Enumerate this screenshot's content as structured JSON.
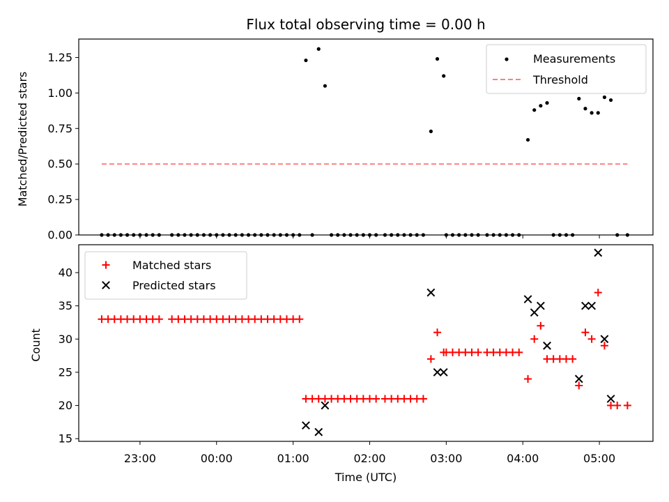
{
  "chart_data": [
    {
      "type": "scatter",
      "title": "Flux total observing time = 0.00 h",
      "ylabel": "Matched/Predicted stars",
      "xlabel": "",
      "ylim": [
        0,
        1.38
      ],
      "yticks": [
        "0.00",
        "0.25",
        "0.50",
        "0.75",
        "1.00",
        "1.25"
      ],
      "ytick_values": [
        0,
        0.25,
        0.5,
        0.75,
        1.0,
        1.25
      ],
      "legend_position": "top-right",
      "series": [
        {
          "name": "Measurements",
          "kind": "scatter",
          "marker": "dot",
          "color": "#000000",
          "points": [
            [
              "22:30",
              0
            ],
            [
              "22:35",
              0
            ],
            [
              "22:40",
              0
            ],
            [
              "22:45",
              0
            ],
            [
              "22:50",
              0
            ],
            [
              "22:55",
              0
            ],
            [
              "23:00",
              0
            ],
            [
              "23:05",
              0
            ],
            [
              "23:10",
              0
            ],
            [
              "23:15",
              0
            ],
            [
              "23:25",
              0
            ],
            [
              "23:30",
              0
            ],
            [
              "23:35",
              0
            ],
            [
              "23:40",
              0
            ],
            [
              "23:45",
              0
            ],
            [
              "23:50",
              0
            ],
            [
              "23:55",
              0
            ],
            [
              "00:00",
              0
            ],
            [
              "00:05",
              0
            ],
            [
              "00:10",
              0
            ],
            [
              "00:15",
              0
            ],
            [
              "00:20",
              0
            ],
            [
              "00:25",
              0
            ],
            [
              "00:30",
              0
            ],
            [
              "00:35",
              0
            ],
            [
              "00:40",
              0
            ],
            [
              "00:45",
              0
            ],
            [
              "00:50",
              0
            ],
            [
              "00:55",
              0
            ],
            [
              "01:00",
              0
            ],
            [
              "01:05",
              0
            ],
            [
              "01:10",
              1.23
            ],
            [
              "01:15",
              0
            ],
            [
              "01:20",
              1.31
            ],
            [
              "01:25",
              1.05
            ],
            [
              "01:30",
              0
            ],
            [
              "01:35",
              0
            ],
            [
              "01:40",
              0
            ],
            [
              "01:45",
              0
            ],
            [
              "01:50",
              0
            ],
            [
              "01:55",
              0
            ],
            [
              "02:00",
              0
            ],
            [
              "02:05",
              0
            ],
            [
              "02:12",
              0
            ],
            [
              "02:17",
              0
            ],
            [
              "02:22",
              0
            ],
            [
              "02:27",
              0
            ],
            [
              "02:32",
              0
            ],
            [
              "02:37",
              0
            ],
            [
              "02:42",
              0
            ],
            [
              "02:48",
              0.73
            ],
            [
              "02:53",
              1.24
            ],
            [
              "02:58",
              1.12
            ],
            [
              "03:00",
              0
            ],
            [
              "03:05",
              0
            ],
            [
              "03:10",
              0
            ],
            [
              "03:15",
              0
            ],
            [
              "03:20",
              0
            ],
            [
              "03:25",
              0
            ],
            [
              "03:32",
              0
            ],
            [
              "03:37",
              0
            ],
            [
              "03:42",
              0
            ],
            [
              "03:47",
              0
            ],
            [
              "03:52",
              0
            ],
            [
              "03:57",
              0
            ],
            [
              "04:04",
              0.67
            ],
            [
              "04:09",
              0.88
            ],
            [
              "04:14",
              0.91
            ],
            [
              "04:19",
              0.93
            ],
            [
              "04:24",
              0
            ],
            [
              "04:29",
              0
            ],
            [
              "04:34",
              0
            ],
            [
              "04:39",
              0
            ],
            [
              "04:44",
              0.96
            ],
            [
              "04:49",
              0.89
            ],
            [
              "04:54",
              0.86
            ],
            [
              "04:59",
              0.86
            ],
            [
              "05:04",
              0.97
            ],
            [
              "05:09",
              0.95
            ],
            [
              "05:14",
              0
            ],
            [
              "05:22",
              0
            ]
          ]
        },
        {
          "name": "Threshold",
          "kind": "line",
          "style": "dashed",
          "color": "#ff7f7f",
          "points": [
            [
              "22:30",
              0.5
            ],
            [
              "05:22",
              0.5
            ]
          ]
        }
      ]
    },
    {
      "type": "scatter",
      "title": "",
      "ylabel": "Count",
      "xlabel": "Time (UTC)",
      "ylim": [
        14.6,
        44.2
      ],
      "yticks": [
        "15",
        "20",
        "25",
        "30",
        "35",
        "40"
      ],
      "ytick_values": [
        15,
        20,
        25,
        30,
        35,
        40
      ],
      "xlim": [
        "22:12",
        "05:42"
      ],
      "xticks": [
        "23:00",
        "00:00",
        "01:00",
        "02:00",
        "03:00",
        "04:00",
        "05:00"
      ],
      "legend_position": "top-left",
      "series": [
        {
          "name": "Matched stars",
          "kind": "scatter",
          "marker": "plus",
          "color": "#ff0000",
          "points": [
            [
              "22:30",
              33
            ],
            [
              "22:35",
              33
            ],
            [
              "22:40",
              33
            ],
            [
              "22:45",
              33
            ],
            [
              "22:50",
              33
            ],
            [
              "22:55",
              33
            ],
            [
              "23:00",
              33
            ],
            [
              "23:05",
              33
            ],
            [
              "23:10",
              33
            ],
            [
              "23:15",
              33
            ],
            [
              "23:25",
              33
            ],
            [
              "23:30",
              33
            ],
            [
              "23:35",
              33
            ],
            [
              "23:40",
              33
            ],
            [
              "23:45",
              33
            ],
            [
              "23:50",
              33
            ],
            [
              "23:55",
              33
            ],
            [
              "00:00",
              33
            ],
            [
              "00:05",
              33
            ],
            [
              "00:10",
              33
            ],
            [
              "00:15",
              33
            ],
            [
              "00:20",
              33
            ],
            [
              "00:25",
              33
            ],
            [
              "00:30",
              33
            ],
            [
              "00:35",
              33
            ],
            [
              "00:40",
              33
            ],
            [
              "00:45",
              33
            ],
            [
              "00:50",
              33
            ],
            [
              "00:55",
              33
            ],
            [
              "01:00",
              33
            ],
            [
              "01:05",
              33
            ],
            [
              "01:10",
              21
            ],
            [
              "01:15",
              21
            ],
            [
              "01:20",
              21
            ],
            [
              "01:25",
              21
            ],
            [
              "01:30",
              21
            ],
            [
              "01:35",
              21
            ],
            [
              "01:40",
              21
            ],
            [
              "01:45",
              21
            ],
            [
              "01:50",
              21
            ],
            [
              "01:55",
              21
            ],
            [
              "02:00",
              21
            ],
            [
              "02:05",
              21
            ],
            [
              "02:12",
              21
            ],
            [
              "02:17",
              21
            ],
            [
              "02:22",
              21
            ],
            [
              "02:27",
              21
            ],
            [
              "02:32",
              21
            ],
            [
              "02:37",
              21
            ],
            [
              "02:42",
              21
            ],
            [
              "02:48",
              27
            ],
            [
              "02:53",
              31
            ],
            [
              "02:58",
              28
            ],
            [
              "03:00",
              28
            ],
            [
              "03:05",
              28
            ],
            [
              "03:10",
              28
            ],
            [
              "03:15",
              28
            ],
            [
              "03:20",
              28
            ],
            [
              "03:25",
              28
            ],
            [
              "03:32",
              28
            ],
            [
              "03:37",
              28
            ],
            [
              "03:42",
              28
            ],
            [
              "03:47",
              28
            ],
            [
              "03:52",
              28
            ],
            [
              "03:57",
              28
            ],
            [
              "04:04",
              24
            ],
            [
              "04:09",
              30
            ],
            [
              "04:14",
              32
            ],
            [
              "04:19",
              27
            ],
            [
              "04:24",
              27
            ],
            [
              "04:29",
              27
            ],
            [
              "04:34",
              27
            ],
            [
              "04:39",
              27
            ],
            [
              "04:44",
              23
            ],
            [
              "04:49",
              31
            ],
            [
              "04:54",
              30
            ],
            [
              "04:59",
              37
            ],
            [
              "05:04",
              29
            ],
            [
              "05:09",
              20
            ],
            [
              "05:14",
              20
            ],
            [
              "05:22",
              20
            ]
          ]
        },
        {
          "name": "Predicted stars",
          "kind": "scatter",
          "marker": "x",
          "color": "#000000",
          "points": [
            [
              "01:10",
              17
            ],
            [
              "01:20",
              16
            ],
            [
              "01:25",
              20
            ],
            [
              "02:48",
              37
            ],
            [
              "02:53",
              25
            ],
            [
              "02:58",
              25
            ],
            [
              "04:04",
              36
            ],
            [
              "04:09",
              34
            ],
            [
              "04:14",
              35
            ],
            [
              "04:19",
              29
            ],
            [
              "04:44",
              24
            ],
            [
              "04:49",
              35
            ],
            [
              "04:54",
              35
            ],
            [
              "04:59",
              43
            ],
            [
              "05:04",
              30
            ],
            [
              "05:09",
              21
            ]
          ]
        }
      ]
    }
  ]
}
